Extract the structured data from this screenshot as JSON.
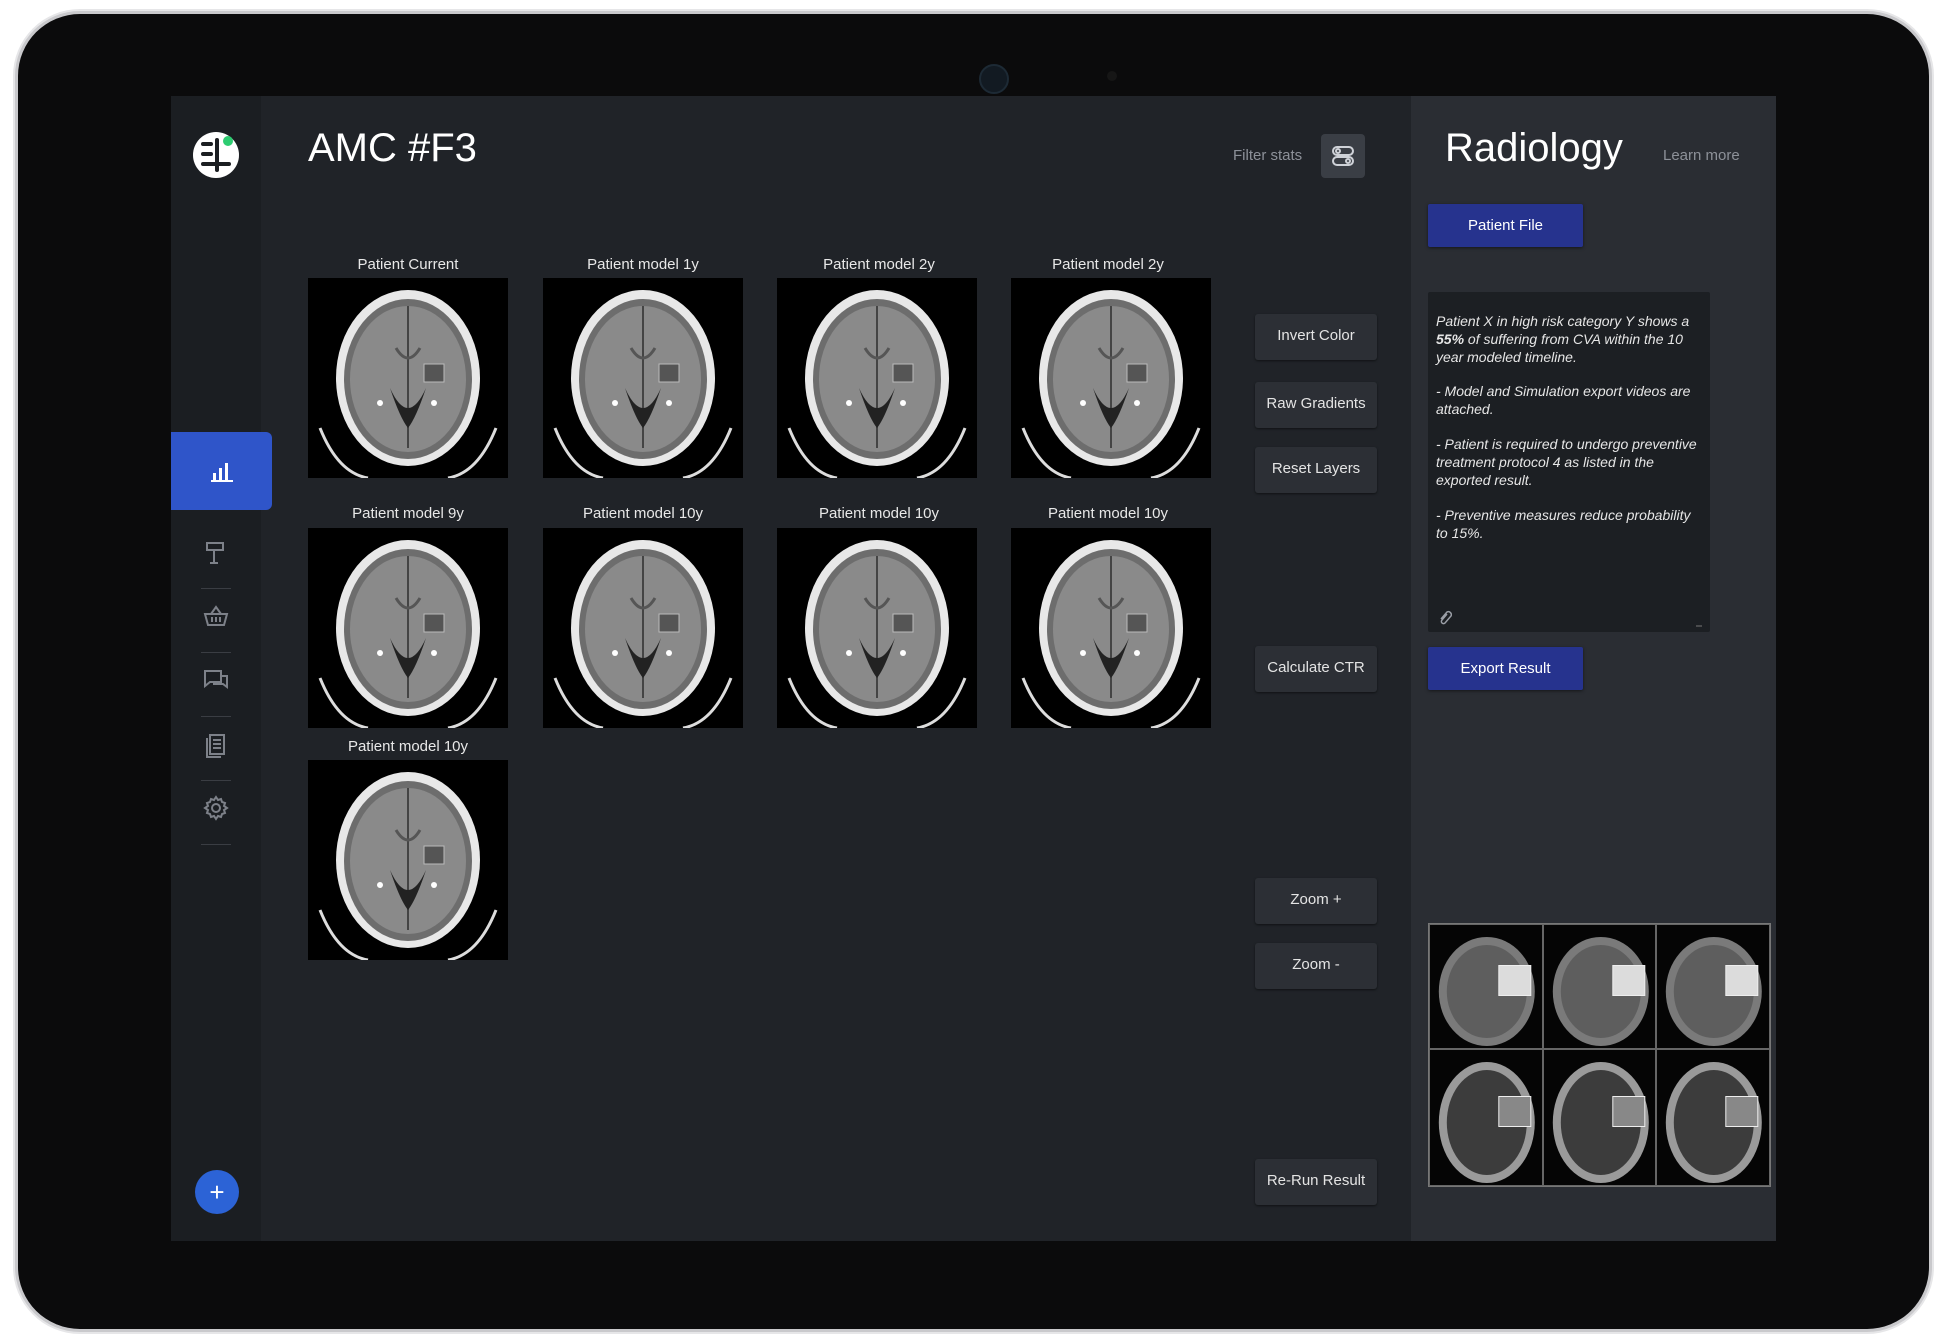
{
  "header": {
    "title": "AMC #F3",
    "filter_label": "Filter stats"
  },
  "sidebar": {
    "items": [
      "stats-icon",
      "signpost-icon",
      "basket-icon",
      "chat-icon",
      "documents-icon",
      "gear-icon"
    ],
    "add_label": "+"
  },
  "scans": [
    {
      "label": "Patient Current"
    },
    {
      "label": "Patient model 1y"
    },
    {
      "label": "Patient model 2y"
    },
    {
      "label": "Patient model 2y"
    },
    {
      "label": "Patient model 9y"
    },
    {
      "label": "Patient model 10y"
    },
    {
      "label": "Patient model 10y"
    },
    {
      "label": "Patient model 10y"
    },
    {
      "label": "Patient model 10y"
    }
  ],
  "actions": {
    "invert": "Invert Color",
    "gradients": "Raw Gradients",
    "reset": "Reset Layers",
    "ctr": "Calculate CTR",
    "zoom_in": "Zoom +",
    "zoom_out": "Zoom -",
    "rerun": "Re-Run Result"
  },
  "panel": {
    "title": "Radiology",
    "learn_more": "Learn more",
    "patient_file": "Patient File",
    "export": "Export Result",
    "notes": {
      "p1_a": "Patient X in high risk category Y shows a ",
      "p1_bold": "55%",
      "p1_b": " of suffering from CVA within the 10 year modeled timeline.",
      "p2": "- Model and Simulation export videos are attached.",
      "p3": "- Patient is required to undergo preventive treatment protocol 4 as listed in the exported result.",
      "p4": "- Preventive measures reduce probability to 15%."
    }
  },
  "colors": {
    "accent": "#2f55c9",
    "button_dark_blue": "#26338e",
    "background": "#202328"
  }
}
